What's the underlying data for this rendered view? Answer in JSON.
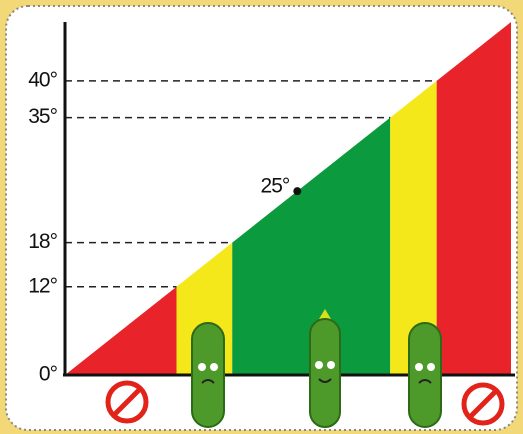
{
  "chart_data": {
    "type": "area",
    "values": [
      25
    ],
    "value_labels": [
      "25°"
    ],
    "point_color": "#111111",
    "zone_colors": [
      "#e8232a",
      "#f5e81a",
      "#0b9a3e",
      "#f5e81a",
      "#e8232a"
    ],
    "ylim": [
      0,
      48
    ],
    "yticks": [
      {
        "value": 0,
        "label": "0°"
      },
      {
        "value": 12,
        "label": "12°"
      },
      {
        "value": 18,
        "label": "18°"
      },
      {
        "value": 35,
        "label": "35°"
      },
      {
        "value": 40,
        "label": "40°"
      }
    ],
    "grid": true
  }
}
